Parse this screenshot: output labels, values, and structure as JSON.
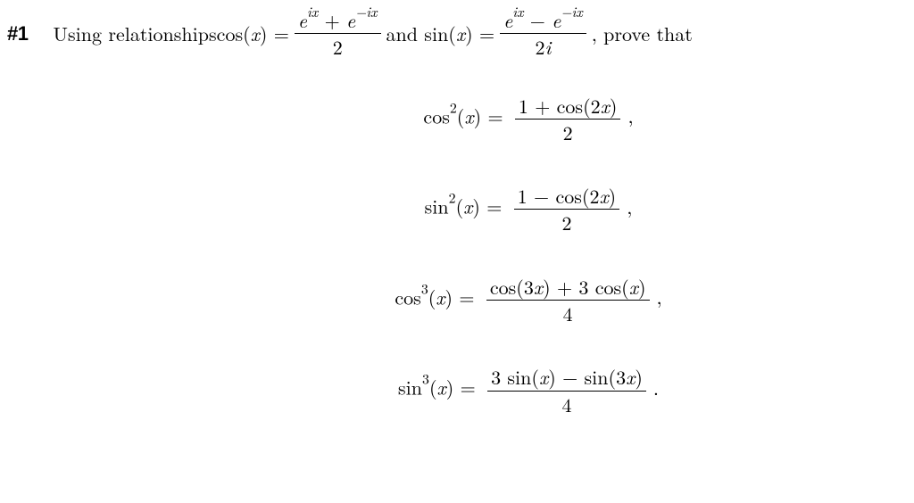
{
  "colors": {
    "text": "#000000",
    "background": "#ffffff",
    "rule": "#000000"
  },
  "typography": {
    "body_family": "serif (Computer Modern style)",
    "label_family": "sans-serif",
    "font_size_pt": 16
  },
  "label": "#1",
  "intro_a": "Using relationships ",
  "eq_cos_lhs": "cos(",
  "varx": "x",
  "eq_rparen_eq": ") = ",
  "cos_def_num": "e",
  "cos_def_sup1": "ix",
  "cos_def_plus": " + ",
  "cos_def_e2": "e",
  "cos_def_sup2": "−ix",
  "cos_def_den": "2",
  "intro_b": " and sin(",
  "sin_def_num_e1": "e",
  "sin_def_sup1": "ix",
  "sin_def_minus": " − ",
  "sin_def_e2": "e",
  "sin_def_sup2": "−ix",
  "sin_def_den": "2",
  "sin_def_den_i": "i",
  "intro_c": ", prove that",
  "eqs": {
    "e1": {
      "lhs_a": "cos",
      "lhs_sup": "2",
      "lhs_b": "(",
      "lhs_c": ") = ",
      "num": "1 + cos(2",
      "num_tail": ")",
      "den": "2",
      "trail": ","
    },
    "e2": {
      "lhs_a": "sin",
      "lhs_sup": "2",
      "lhs_b": "(",
      "lhs_c": ") = ",
      "num": "1 − cos(2",
      "num_tail": ")",
      "den": "2",
      "trail": ","
    },
    "e3": {
      "lhs_a": "cos",
      "lhs_sup": "3",
      "lhs_b": "(",
      "lhs_c": ") = ",
      "num_a": "cos(3",
      "num_b": ") + 3 cos(",
      "num_c": ")",
      "den": "4",
      "trail": ","
    },
    "e4": {
      "lhs_a": "sin",
      "lhs_sup": "3",
      "lhs_b": "(",
      "lhs_c": ") = ",
      "num_a": "3 sin(",
      "num_b": ") − sin(3",
      "num_c": ")",
      "den": "4",
      "trail": "."
    }
  }
}
